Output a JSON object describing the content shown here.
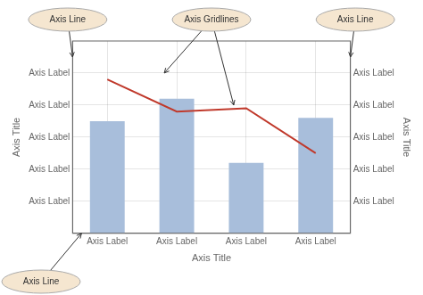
{
  "chart_data": {
    "type": "bar",
    "categories": [
      "Axis Label",
      "Axis Label",
      "Axis Label",
      "Axis Label"
    ],
    "series": [
      {
        "type": "bar",
        "color": "#a8bedb",
        "values": [
          3.5,
          4.2,
          2.2,
          3.6
        ]
      },
      {
        "type": "line",
        "color": "#c0392b",
        "values": [
          4.8,
          3.8,
          3.9,
          2.5
        ]
      }
    ],
    "xlabel": "Axis Title",
    "ylabel": "Axis Title",
    "y2label": "Axis Title",
    "ylim": [
      0,
      6
    ],
    "yticks": [
      {
        "value": 1,
        "label": "Axis Label"
      },
      {
        "value": 2,
        "label": "Axis Label"
      },
      {
        "value": 3,
        "label": "Axis Label"
      },
      {
        "value": 4,
        "label": "Axis Label"
      },
      {
        "value": 5,
        "label": "Axis Label"
      }
    ],
    "y2lim": [
      0,
      6
    ],
    "y2ticks": [
      {
        "value": 1,
        "label": "Axis Label"
      },
      {
        "value": 2,
        "label": "Axis Label"
      },
      {
        "value": 3,
        "label": "Axis Label"
      },
      {
        "value": 4,
        "label": "Axis Label"
      },
      {
        "value": 5,
        "label": "Axis Label"
      }
    ],
    "grid": true,
    "annotations": [
      {
        "text": "Axis Line"
      },
      {
        "text": "Axis Gridlines"
      },
      {
        "text": "Axis Line"
      },
      {
        "text": "Axis Line"
      }
    ]
  }
}
